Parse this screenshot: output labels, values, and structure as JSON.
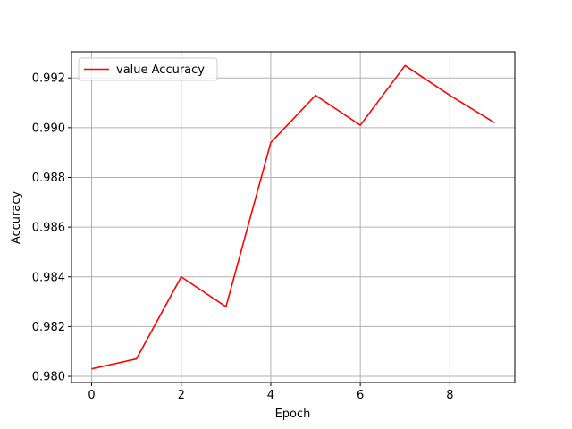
{
  "chart_data": {
    "type": "line",
    "title": "",
    "xlabel": "Epoch",
    "ylabel": "Accuracy",
    "xlim": [
      -0.45,
      9.45
    ],
    "ylim": [
      0.97975,
      0.99305
    ],
    "xticks": [
      0,
      2,
      4,
      6,
      8
    ],
    "yticks": [
      0.98,
      0.982,
      0.984,
      0.986,
      0.988,
      0.99,
      0.992
    ],
    "xtick_labels": [
      "0",
      "2",
      "4",
      "6",
      "8"
    ],
    "ytick_labels": [
      "0.980",
      "0.982",
      "0.984",
      "0.986",
      "0.988",
      "0.990",
      "0.992"
    ],
    "grid": true,
    "legend_position": "upper-left",
    "series": [
      {
        "name": "value Accuracy",
        "color": "#ff0000",
        "x": [
          0,
          1,
          2,
          3,
          4,
          5,
          6,
          7,
          8,
          9
        ],
        "values": [
          0.9803,
          0.9807,
          0.984,
          0.9828,
          0.9894,
          0.9913,
          0.9901,
          0.9925,
          0.9913,
          0.9902
        ]
      }
    ]
  }
}
